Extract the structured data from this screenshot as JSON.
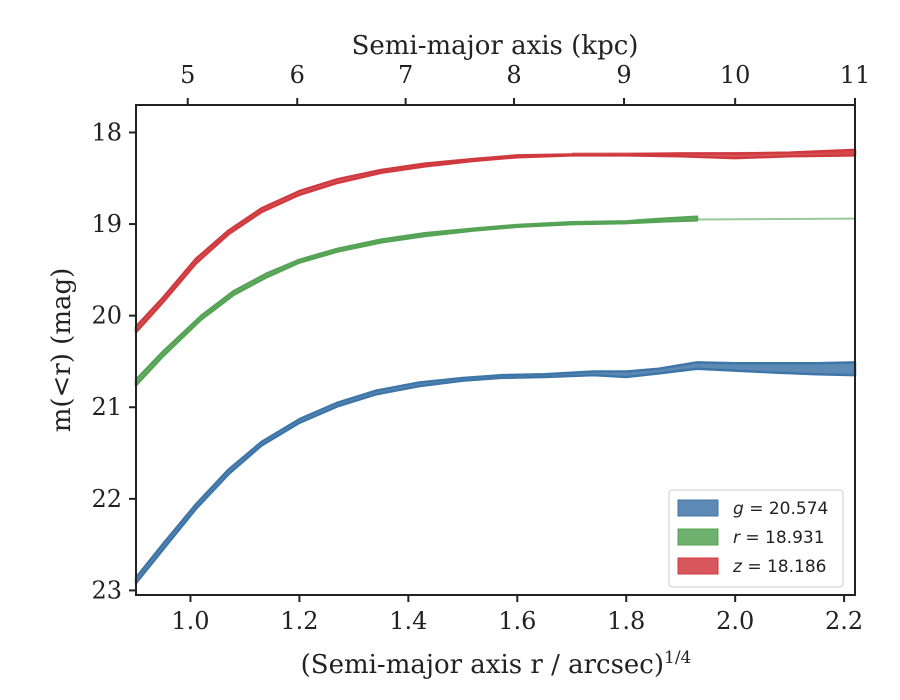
{
  "chart_data": {
    "type": "area",
    "xlabel": "(Semi-major axis r / arcsec)",
    "xlabel_sup": "1/4",
    "ylabel": "m(<r) (mag)",
    "top_xlabel": "Semi-major axis (kpc)",
    "xlim": [
      0.9,
      2.22
    ],
    "ylim": [
      23.05,
      17.7
    ],
    "x_ticks": [
      1.0,
      1.2,
      1.4,
      1.6,
      1.8,
      2.0,
      2.2
    ],
    "x_tick_labels": [
      "1.0",
      "1.2",
      "1.4",
      "1.6",
      "1.8",
      "2.0",
      "2.2"
    ],
    "y_ticks": [
      18,
      19,
      20,
      21,
      22,
      23
    ],
    "y_tick_labels": [
      "18",
      "19",
      "20",
      "21",
      "22",
      "23"
    ],
    "top_ticks_kpc": [
      5,
      6,
      7,
      8,
      9,
      10,
      11
    ],
    "top_tick_labels": [
      "5",
      "6",
      "7",
      "8",
      "9",
      "10",
      "11"
    ],
    "top_tick_x_positions": [
      0.995,
      1.196,
      1.395,
      1.594,
      1.796,
      2.0,
      2.22
    ],
    "grid": false,
    "legend_position": "bottom-right",
    "series": [
      {
        "name": "g = 20.574",
        "legend_parts": [
          "g",
          " = 20.574"
        ],
        "color": "#3f76a8",
        "x": [
          0.9,
          0.95,
          1.01,
          1.07,
          1.13,
          1.2,
          1.27,
          1.34,
          1.42,
          1.5,
          1.57,
          1.65,
          1.74,
          1.8,
          1.86,
          1.93,
          2.0,
          2.07,
          2.15,
          2.22
        ],
        "y_upper": [
          22.86,
          22.49,
          22.06,
          21.68,
          21.38,
          21.13,
          20.95,
          20.82,
          20.73,
          20.68,
          20.65,
          20.64,
          20.61,
          20.61,
          20.58,
          20.51,
          20.52,
          20.52,
          20.52,
          20.51
        ],
        "y_lower": [
          22.92,
          22.55,
          22.11,
          21.73,
          21.42,
          21.17,
          20.99,
          20.86,
          20.77,
          20.71,
          20.68,
          20.67,
          20.65,
          20.67,
          20.63,
          20.58,
          20.6,
          20.62,
          20.64,
          20.65
        ],
        "extension": null
      },
      {
        "name": "r = 18.931",
        "legend_parts": [
          "r",
          " = 18.931"
        ],
        "color": "#55a355",
        "x": [
          0.9,
          0.95,
          1.02,
          1.08,
          1.14,
          1.2,
          1.27,
          1.35,
          1.43,
          1.52,
          1.6,
          1.7,
          1.8,
          1.87,
          1.93
        ],
        "y_upper": [
          20.7,
          20.39,
          20.0,
          19.73,
          19.54,
          19.39,
          19.27,
          19.17,
          19.1,
          19.05,
          19.01,
          18.98,
          18.97,
          18.94,
          18.92
        ],
        "y_lower": [
          20.76,
          20.44,
          20.04,
          19.77,
          19.58,
          19.42,
          19.3,
          19.2,
          19.13,
          19.07,
          19.03,
          19.0,
          18.99,
          18.97,
          18.96
        ],
        "extension": {
          "x": [
            1.93,
            2.22
          ],
          "y": [
            18.95,
            18.94
          ]
        }
      },
      {
        "name": "z = 18.186",
        "legend_parts": [
          "z",
          " = 18.186"
        ],
        "color": "#d03a3f",
        "x": [
          0.9,
          0.95,
          1.01,
          1.07,
          1.13,
          1.2,
          1.27,
          1.35,
          1.43,
          1.52,
          1.6,
          1.7,
          1.8,
          1.9,
          2.0,
          2.1,
          2.22
        ],
        "y_upper": [
          20.12,
          19.8,
          19.38,
          19.07,
          18.83,
          18.64,
          18.51,
          18.41,
          18.34,
          18.29,
          18.25,
          18.24,
          18.24,
          18.23,
          18.23,
          18.22,
          18.19
        ],
        "y_lower": [
          20.18,
          19.85,
          19.43,
          19.11,
          18.87,
          18.68,
          18.55,
          18.44,
          18.37,
          18.31,
          18.27,
          18.25,
          18.25,
          18.26,
          18.28,
          18.26,
          18.25
        ],
        "extension": {
          "x": [
            1.7,
            2.22
          ],
          "y": [
            18.23,
            18.22
          ]
        }
      }
    ]
  }
}
